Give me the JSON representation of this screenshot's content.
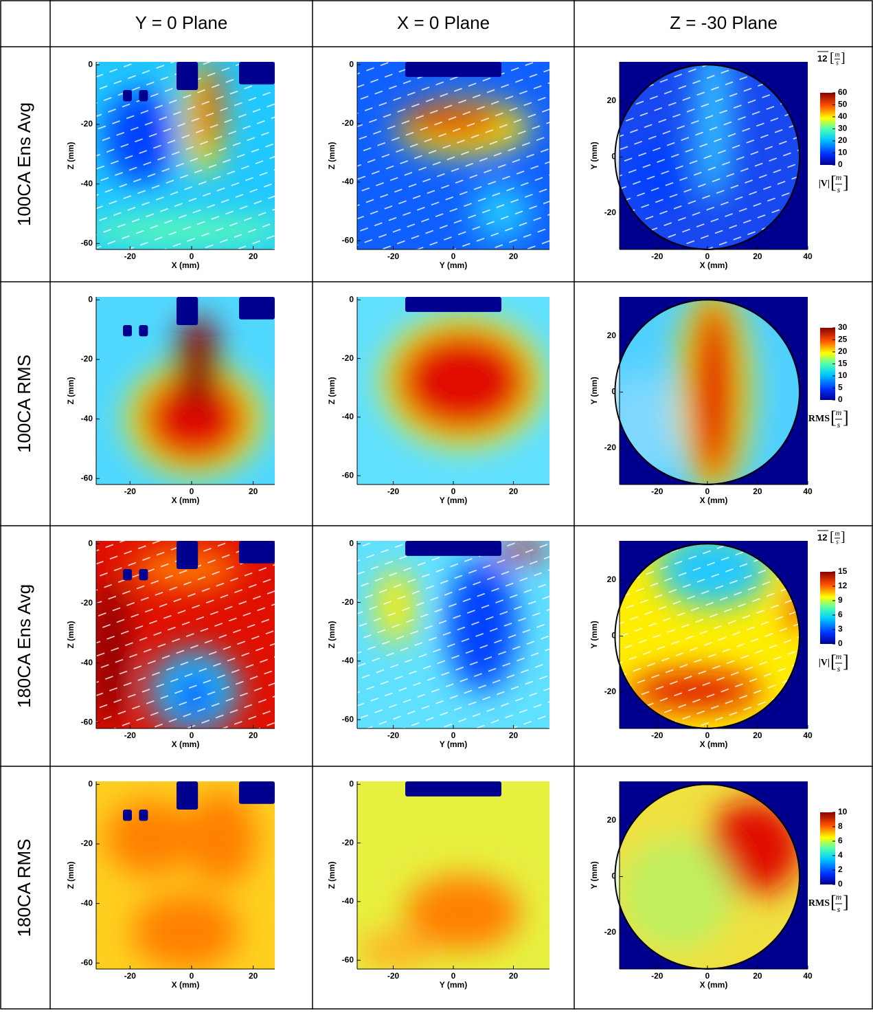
{
  "table": {
    "columns": [
      "Y = 0 Plane",
      "X = 0 Plane",
      "Z = -30 Plane"
    ],
    "rows": [
      "100CA Ens Avg",
      "100CA RMS",
      "180CA Ens Avg",
      "180CA RMS"
    ]
  },
  "axes": [
    {
      "xlabel": "X (mm)",
      "ylabel": "Z (mm)",
      "xlim": [
        -31,
        27
      ],
      "ylim": [
        -62,
        1
      ],
      "xticks": [
        -20,
        0,
        20
      ],
      "yticks": [
        0,
        -20,
        -40,
        -60
      ]
    },
    {
      "xlabel": "Y (mm)",
      "ylabel": "Z (mm)",
      "xlim": [
        -32,
        32
      ],
      "ylim": [
        -63,
        1
      ],
      "xticks": [
        -20,
        0,
        20
      ],
      "yticks": [
        0,
        -20,
        -40,
        -60
      ]
    },
    {
      "xlabel": "X (mm)",
      "ylabel": "Y (mm)",
      "xlim": [
        -35,
        40
      ],
      "ylim": [
        -33,
        34
      ],
      "xticks": [
        -20,
        0,
        20,
        40
      ],
      "yticks": [
        20,
        0,
        -20
      ]
    }
  ],
  "colorbars": [
    {
      "clim": [
        0,
        60
      ],
      "ticks": [
        0,
        10,
        20,
        30,
        40,
        50,
        60
      ],
      "label": "|V|",
      "unit_num": "m",
      "unit_den": "s",
      "vector_ref": "12"
    },
    {
      "clim": [
        0,
        30
      ],
      "ticks": [
        0,
        5,
        10,
        15,
        20,
        25,
        30
      ],
      "label": "RMS",
      "unit_num": "m",
      "unit_den": "s"
    },
    {
      "clim": [
        0,
        15
      ],
      "ticks": [
        0,
        3,
        6,
        9,
        12,
        15
      ],
      "label": "|V|",
      "unit_num": "m",
      "unit_den": "s",
      "vector_ref": "12"
    },
    {
      "clim": [
        0,
        10
      ],
      "ticks": [
        0,
        2,
        4,
        6,
        8,
        10
      ],
      "label": "RMS",
      "unit_num": "m",
      "unit_den": "s"
    }
  ]
}
